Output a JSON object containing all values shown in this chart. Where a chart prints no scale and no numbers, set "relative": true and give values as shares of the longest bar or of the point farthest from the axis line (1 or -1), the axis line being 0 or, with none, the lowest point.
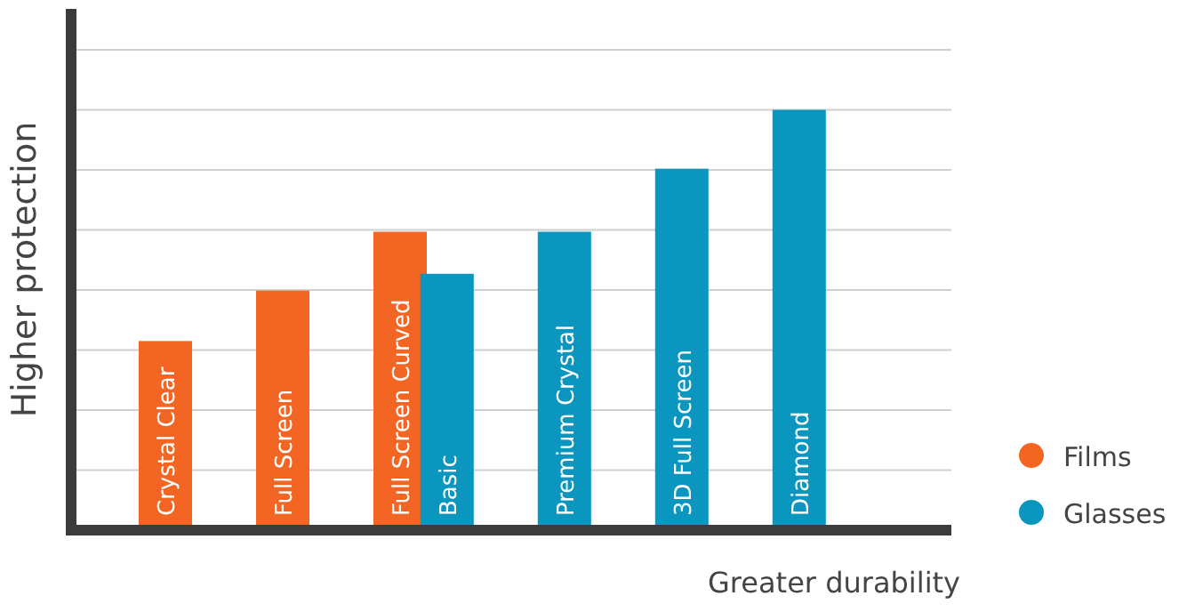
{
  "chart_data": {
    "type": "bar",
    "relative": true,
    "xlabel": "Greater durability",
    "ylabel": "Higher protection",
    "categories": [
      "Crystal Clear",
      "Full Screen",
      "Full Screen Curved",
      "Basic",
      "Premium Crystal",
      "3D Full Screen",
      "Diamond"
    ],
    "series": [
      {
        "name": "Films",
        "color": "#f26522",
        "values": [
          0.45,
          0.57,
          0.71,
          null,
          null,
          null,
          null
        ]
      },
      {
        "name": "Glasses",
        "color": "#0a96be",
        "values": [
          null,
          null,
          null,
          0.61,
          0.71,
          0.86,
          1
        ]
      }
    ],
    "grid": "y",
    "legend": "bottom right"
  }
}
